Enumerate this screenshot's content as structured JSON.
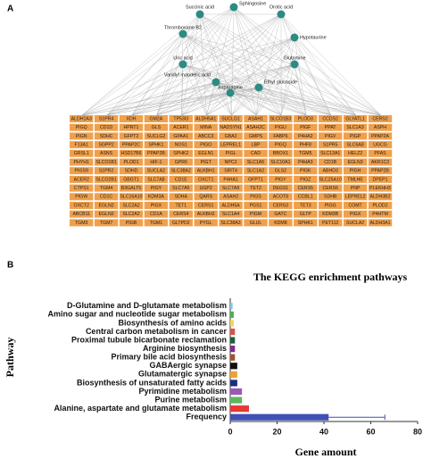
{
  "panel_a": {
    "label": "A",
    "nodes": [
      "Sphingosine",
      "Succinic acid",
      "Orotic acid",
      "Thromboxane B2",
      "Hypotaurine",
      "Uric acid",
      "Glutamine",
      "Vanillyl mandelic acid",
      "Asparagine",
      "Ethyl glucoside"
    ],
    "genes": [
      [
        "ALDH1A3",
        "S1PR4",
        "XDH",
        "GM2A",
        "TP53I3",
        "ALDH5A1",
        "SUCLG1",
        "ASAH1",
        "SLCO1B3",
        "PLOD3",
        "CCDS2",
        "GLYATL1",
        "CERS2"
      ],
      [
        "PIGQ",
        "CD1D",
        "HPRT1",
        "GLS",
        "ACER1",
        "MINA",
        "NADSYN1",
        "ASAH2C",
        "PIGU",
        "PIGF",
        "PPAT",
        "SLC1A3",
        "ASPH"
      ],
      [
        "PIGN",
        "SDHC",
        "GFPT2",
        "SUCLG2",
        "GPAA1",
        "ABCC3",
        "GBA2",
        "GMPS",
        "FABP6",
        "P4HA2",
        "PIGV",
        "PIGP",
        "PPAP2A"
      ],
      [
        "F13A1",
        "SGPP2",
        "PPAP2C",
        "SPHK1",
        "NOS1",
        "PIGO",
        "LEPREL1",
        "LBP",
        "PIGQ",
        "PHF8",
        "S1PR5",
        "SLC6A8",
        "UGCG"
      ],
      [
        "GRSL1",
        "ASNS",
        "HSD17B6",
        "PPAP2B",
        "SPHK2",
        "EGLN1",
        "PIGL",
        "CAD",
        "BBOX1",
        "TGM5",
        "SLC13A1",
        "HELZ2",
        "PFAS"
      ],
      [
        "PHYH1",
        "SLCO1B1",
        "PLOD1",
        "HIF-1",
        "GPR6",
        "PIGT",
        "NPC2",
        "SLC1A5",
        "SLC10A1",
        "P4HA3",
        "CD1B",
        "EGLN3",
        "AKR1C2"
      ],
      [
        "PIGS9",
        "S1PR2",
        "SDHD",
        "SUCLA2",
        "SLC38A2",
        "ALKBH1",
        "SIRT4",
        "SLC1A2",
        "GLS2",
        "PIGK",
        "ABHD3",
        "PIGH",
        "PPAP2B"
      ],
      [
        "ACER2",
        "SLCO2B1",
        "GBGT1",
        "SLC7A8",
        "CD1E",
        "OXCT1",
        "P4HA1",
        "GFPT1",
        "PIGY",
        "PIGZ",
        "SLC25A10",
        "TMLHE",
        "DPEP1"
      ],
      [
        "CTPS1",
        "TGM4",
        "B3GALT5",
        "PIGY",
        "SLC7A5",
        "UGP2",
        "SLC7A9",
        "TET2",
        "DEGS1",
        "CERS5",
        "CERS6",
        "PNP",
        "PLEKHH3"
      ],
      [
        "PIGW",
        "CD1C",
        "SLC16A10",
        "KDM3A",
        "SDHA",
        "QARS",
        "ASAH2",
        "PIGS",
        "ACOT8",
        "CCBL1",
        "SDHB",
        "LEPREL2",
        "ALDH3B2"
      ],
      [
        "OXCT2",
        "EGLN2",
        "SLC2A2",
        "PIGX",
        "TET1",
        "CERS1",
        "ALDH5A",
        "PGS1",
        "CERS3",
        "TET3",
        "PIGG",
        "COMT",
        "PLOD2"
      ],
      [
        "ABCB11",
        "EGLN2",
        "SLC2A2",
        "CD1A",
        "CERS4",
        "ALKBH2",
        "SLC1A4",
        "PIGM",
        "GATC",
        "GLTP",
        "KDM3B",
        "PIGX",
        "P4HTM"
      ],
      [
        "TGM3",
        "TGM7",
        "PIGB",
        "TGM1",
        "GLTPD2",
        "PYGL",
        "SLC38A3",
        "GLUL",
        "KDM8",
        "SPHK1",
        "PET112",
        "SUCLA2",
        "ALDH3A1"
      ]
    ]
  },
  "chart_data": {
    "type": "bar",
    "orientation": "horizontal",
    "panel_label": "B",
    "title": "The KEGG enrichment pathways",
    "xlabel": "Gene amount",
    "ylabel": "Pathway",
    "categories": [
      "D-Glutamine and D-glutamate metabolism",
      "Amino sugar and nucleotide sugar metabolism",
      "Biosynthesis of amino acids",
      "Central carbon metabolism in cancer",
      "Proximal tubule bicarbonate reclamation",
      "Arginine biosynthesis",
      "Primary bile acid biosynthesis",
      "GABAergic synapse",
      "Glutamatergic synapse",
      "Biosynthesis of unsaturated fatty acids",
      "Pyrimidine metabolism",
      "Purine metabolism",
      "Alanine, aspartate and glutamate metabolism",
      "Frequency"
    ],
    "values": [
      1,
      1.5,
      1.5,
      2,
      2,
      2,
      2,
      3,
      3,
      3,
      5,
      5,
      8,
      42
    ],
    "errors": [
      null,
      null,
      null,
      null,
      null,
      null,
      null,
      null,
      null,
      null,
      null,
      null,
      null,
      24
    ],
    "colors": [
      "#7ec8e3",
      "#4caf50",
      "#f2d45c",
      "#d9534f",
      "#1e5e3a",
      "#7b2d8b",
      "#a0522d",
      "#111111",
      "#f0a030",
      "#1f2f7a",
      "#9b59b6",
      "#5cb85c",
      "#e53935",
      "#3f51b5"
    ],
    "xlim": [
      0,
      80
    ],
    "xticks": [
      0,
      20,
      40,
      60,
      80
    ]
  }
}
